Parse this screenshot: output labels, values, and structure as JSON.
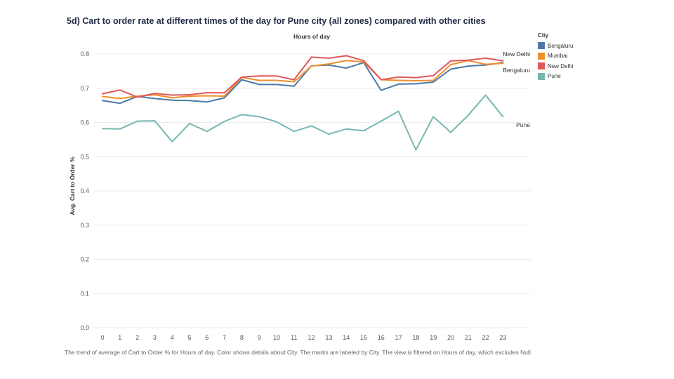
{
  "title": "5d) Cart to order rate at different times of the day for Pune city (all zones) compared with other cities",
  "footnote": "The trend of average of Cart to Order % for Hours of day.  Color shows details about City.  The marks are labeled by City. The view is filtered on Hours of day, which excludes Null.",
  "legend": {
    "title": "City",
    "items": [
      {
        "label": "Bengaluru",
        "color": "#4e79a7"
      },
      {
        "label": "Mumbai",
        "color": "#f28e2b"
      },
      {
        "label": "New Delhi",
        "color": "#e15759"
      },
      {
        "label": "Pune",
        "color": "#76b7b2"
      }
    ]
  },
  "chart_data": {
    "type": "line",
    "title": "",
    "xlabel": "Hours of day",
    "ylabel": "Avg. Cart to Order %",
    "x": [
      0,
      1,
      2,
      3,
      4,
      5,
      6,
      7,
      8,
      9,
      10,
      11,
      12,
      13,
      14,
      15,
      16,
      17,
      18,
      19,
      20,
      21,
      22,
      23
    ],
    "xticks": [
      "0",
      "1",
      "2",
      "3",
      "4",
      "5",
      "6",
      "7",
      "8",
      "9",
      "10",
      "11",
      "12",
      "13",
      "14",
      "15",
      "16",
      "17",
      "18",
      "19",
      "20",
      "21",
      "22",
      "23"
    ],
    "ylim": [
      0,
      0.8
    ],
    "yticks": [
      "0.0",
      "0.1",
      "0.2",
      "0.3",
      "0.4",
      "0.5",
      "0.6",
      "0.7",
      "0.8"
    ],
    "grid": "horizontal",
    "legend_position": "right",
    "series": [
      {
        "name": "Bengaluru",
        "color": "#4e79a7",
        "end_label": "Bengaluru",
        "values": [
          0.664,
          0.656,
          0.676,
          0.67,
          0.665,
          0.664,
          0.66,
          0.672,
          0.725,
          0.711,
          0.711,
          0.706,
          0.766,
          0.768,
          0.759,
          0.775,
          0.694,
          0.712,
          0.713,
          0.718,
          0.756,
          0.765,
          0.768,
          0.775
        ]
      },
      {
        "name": "Mumbai",
        "color": "#f28e2b",
        "end_label": "",
        "values": [
          0.676,
          0.67,
          0.677,
          0.681,
          0.672,
          0.677,
          0.678,
          0.677,
          0.732,
          0.723,
          0.723,
          0.719,
          0.765,
          0.771,
          0.781,
          0.777,
          0.725,
          0.723,
          0.722,
          0.723,
          0.769,
          0.781,
          0.77,
          0.773
        ]
      },
      {
        "name": "New Delhi",
        "color": "#e15759",
        "end_label": "New Delhi",
        "values": [
          0.684,
          0.695,
          0.674,
          0.685,
          0.68,
          0.681,
          0.687,
          0.687,
          0.733,
          0.736,
          0.736,
          0.725,
          0.791,
          0.788,
          0.795,
          0.781,
          0.725,
          0.733,
          0.731,
          0.737,
          0.78,
          0.782,
          0.788,
          0.78
        ]
      },
      {
        "name": "Pune",
        "color": "#76b7b2",
        "end_label": "Pune",
        "values": [
          0.582,
          0.581,
          0.604,
          0.605,
          0.544,
          0.597,
          0.574,
          0.603,
          0.623,
          0.617,
          0.602,
          0.574,
          0.59,
          0.566,
          0.581,
          0.576,
          0.604,
          0.633,
          0.52,
          0.617,
          0.571,
          0.621,
          0.68,
          0.617
        ]
      }
    ]
  }
}
